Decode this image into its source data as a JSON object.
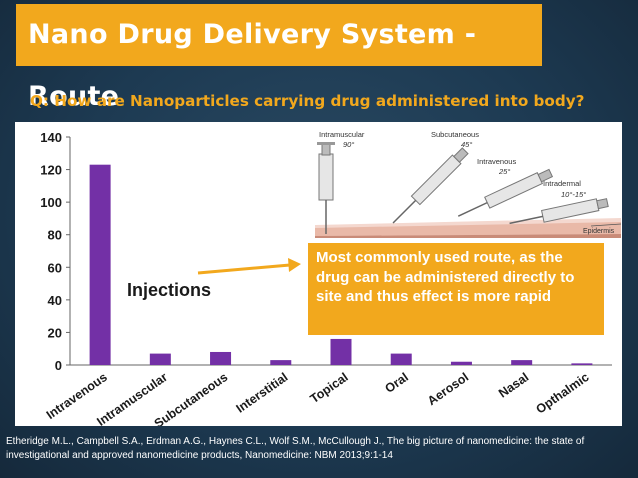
{
  "slide": {
    "title": "Nano Drug Delivery System - Route",
    "question": "Q: How are Nanoparticles carrying drug administered into body?",
    "citation": "Etheridge M.L., Campbell S.A., Erdman A.G., Haynes C.L., Wolf S.M., McCullough J., The big picture of nanomedicine: the state of investigational and approved nanomedicine products, Nanomedicine: NBM 2013;9:1-14"
  },
  "annotations": {
    "injections_label": "Injections",
    "callout_text": "Most commonly used route, as the drug can be administered directly to site and thus effect is more rapid"
  },
  "illustration": {
    "labels": {
      "intramuscular": "Intramuscular",
      "intramuscular_angle": "90°",
      "subcutaneous": "Subcutaneous",
      "subcutaneous_angle": "45°",
      "intravenous": "Intravenous",
      "intravenous_angle": "25°",
      "intradermal": "Intradermal",
      "intradermal_angle": "10°-15°",
      "epidermis": "Epidermis"
    }
  },
  "colors": {
    "accent": "#f2a81d",
    "bar": "#7330a6",
    "background": "#1d3a52"
  },
  "chart_data": {
    "type": "bar",
    "categories": [
      "Intravenous",
      "Intramuscular",
      "Subcutaneous",
      "Interstitial",
      "Topical",
      "Oral",
      "Aerosol",
      "Nasal",
      "Opthalmic"
    ],
    "values": [
      123,
      7,
      8,
      3,
      16,
      7,
      2,
      3,
      1
    ],
    "ylim": [
      0,
      140
    ],
    "yticks": [
      0,
      20,
      40,
      60,
      80,
      100,
      120,
      140
    ],
    "grid": false,
    "title": "",
    "xlabel": "",
    "ylabel": ""
  }
}
